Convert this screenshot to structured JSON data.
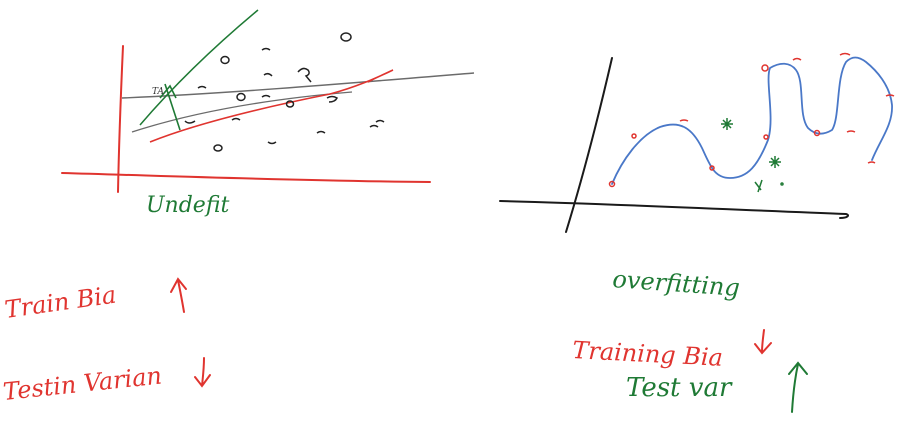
{
  "colors": {
    "ink_black": "#1a1a1a",
    "ink_red": "#e0342f",
    "ink_green": "#1f7a35",
    "ink_blue": "#4a78c8",
    "ink_dark": "#222222"
  },
  "left_sketch": {
    "caption": "Undefit",
    "train_label": "Train Bia",
    "train_arrow": "↑",
    "test_label": "Testin Varian",
    "test_arrow": "↓"
  },
  "right_sketch": {
    "caption": "overfitting",
    "train_label": "Training Bia",
    "train_arrow": "↓",
    "test_label": "Test var",
    "test_arrow": "↑"
  }
}
